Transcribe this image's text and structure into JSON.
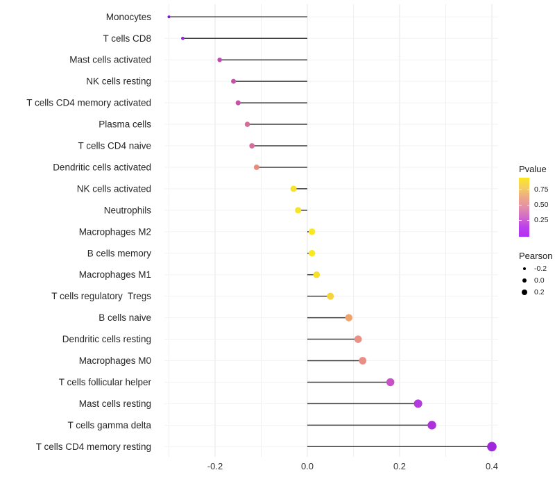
{
  "colors": {
    "background": "#FFFFFF",
    "stem": "#3D3D3D",
    "grid_major": "#E4E4E4",
    "grid_minor": "#F0F0F0",
    "grid_row": "#F2F2F2",
    "axis_text": "#333333",
    "category_text": "#262626",
    "legend_dot": "#000000"
  },
  "chart_data": {
    "type": "lollipop",
    "orientation": "horizontal",
    "title": "",
    "xlabel": "",
    "ylabel": "",
    "grid": "vertical major+minor, faint horizontal row lines",
    "x_tick_values": [
      -0.2,
      0.0,
      0.2,
      0.4
    ],
    "x_tick_labels": [
      "-0.2",
      "0.0",
      "0.2",
      "0.4"
    ],
    "x_minor_gridlines": [
      -0.3,
      -0.1,
      0.1,
      0.3
    ],
    "xlim": [
      -0.31,
      0.413
    ],
    "baseline": 0.0,
    "size_encoding": "Pearson value (larger = higher)",
    "color_encoding": "Pvalue (yellow = high, purple = low)",
    "categories": [
      "Monocytes",
      "T cells CD8",
      "Mast cells activated",
      "NK cells resting",
      "T cells CD4 memory activated",
      "Plasma cells",
      "T cells CD4 naive",
      "Dendritic cells activated",
      "NK cells activated",
      "Neutrophils",
      "Macrophages M2",
      "B cells memory",
      "Macrophages M1",
      "T cells regulatory  Tregs",
      "B cells naive",
      "Dendritic cells resting",
      "Macrophages M0",
      "T cells follicular helper",
      "Mast cells resting",
      "T cells gamma delta",
      "T cells CD4 memory resting"
    ],
    "pearson": [
      -0.3,
      -0.27,
      -0.19,
      -0.16,
      -0.15,
      -0.13,
      -0.12,
      -0.11,
      -0.03,
      -0.02,
      0.01,
      0.01,
      0.02,
      0.05,
      0.09,
      0.11,
      0.12,
      0.18,
      0.24,
      0.27,
      0.4
    ],
    "point_colors": [
      "#7D1AD1",
      "#8F2BD9",
      "#BD4BB3",
      "#C355A6",
      "#C751A7",
      "#D66C99",
      "#D56E9C",
      "#E78C7D",
      "#F7E32A",
      "#F7E32A",
      "#F9E91E",
      "#F9E91E",
      "#F8E029",
      "#F5D33C",
      "#F0A46A",
      "#EA9186",
      "#EA8F88",
      "#C951C5",
      "#B13BDD",
      "#AB31DC",
      "#9F27DC"
    ],
    "legend": {
      "pvalue": {
        "title": "Pvalue",
        "tick_labels": [
          "0.75",
          "0.50",
          "0.25"
        ],
        "gradient_top_to_bottom": [
          "#FBE723",
          "#F5CE62",
          "#EDA985",
          "#E28FA9",
          "#D26BC8",
          "#BC3FEC",
          "#B231F2"
        ]
      },
      "pearson": {
        "title": "Pearson",
        "size_labels": [
          "-0.2",
          "0.0",
          "0.2"
        ]
      }
    }
  }
}
